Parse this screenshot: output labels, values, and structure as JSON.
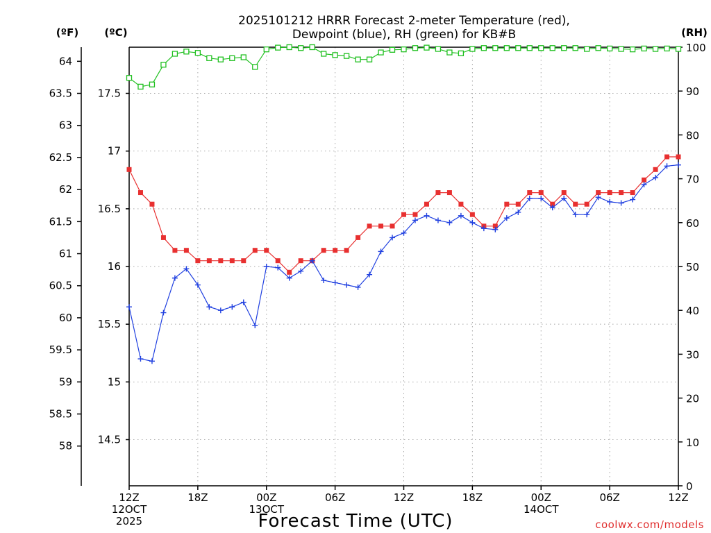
{
  "chart_data": {
    "type": "line",
    "title_line1": "2025101212 HRRR Forecast 2-meter Temperature (red),",
    "title_line2": "Dewpoint (blue), RH (green) for KB#B",
    "unit_f": "(ºF)",
    "unit_c": "(ºC)",
    "unit_rh": "(RH)",
    "xlabel": "Forecast Time (UTC)",
    "credit": "coolwx.com/models",
    "x_range_hours": [
      0,
      48
    ],
    "y_c_range": [
      14.1,
      17.9
    ],
    "y_rh_range": [
      0,
      100
    ],
    "fahrenheit_ticks": [
      "58",
      "58.5",
      "59",
      "59.5",
      "60",
      "60.5",
      "61",
      "61.5",
      "62",
      "62.5",
      "63",
      "63.5",
      "64"
    ],
    "fahrenheit_values": [
      58,
      58.5,
      59,
      59.5,
      60,
      60.5,
      61,
      61.5,
      62,
      62.5,
      63,
      63.5,
      64
    ],
    "celsius_ticks": [
      "14.5",
      "15",
      "15.5",
      "16",
      "16.5",
      "17",
      "17.5"
    ],
    "celsius_values": [
      14.5,
      15,
      15.5,
      16,
      16.5,
      17,
      17.5
    ],
    "rh_ticks": [
      "0",
      "10",
      "20",
      "30",
      "40",
      "50",
      "60",
      "70",
      "80",
      "90",
      "100"
    ],
    "rh_values": [
      0,
      10,
      20,
      30,
      40,
      50,
      60,
      70,
      80,
      90,
      100
    ],
    "x_ticks": [
      {
        "hour": 0,
        "lines": [
          "12Z",
          "12OCT",
          "2025"
        ]
      },
      {
        "hour": 6,
        "lines": [
          "18Z"
        ]
      },
      {
        "hour": 12,
        "lines": [
          "00Z",
          "13OCT"
        ]
      },
      {
        "hour": 18,
        "lines": [
          "06Z"
        ]
      },
      {
        "hour": 24,
        "lines": [
          "12Z"
        ]
      },
      {
        "hour": 30,
        "lines": [
          "18Z"
        ]
      },
      {
        "hour": 36,
        "lines": [
          "00Z",
          "14OCT"
        ]
      },
      {
        "hour": 42,
        "lines": [
          "06Z"
        ]
      },
      {
        "hour": 48,
        "lines": [
          "12Z"
        ]
      }
    ],
    "grid": true,
    "series": [
      {
        "name": "Temperature (red)",
        "axis": "celsius",
        "color": "#e83030",
        "marker": "filled-square",
        "values": [
          16.84,
          16.64,
          16.54,
          16.25,
          16.14,
          16.14,
          16.05,
          16.05,
          16.05,
          16.05,
          16.05,
          16.14,
          16.14,
          16.05,
          15.95,
          16.05,
          16.05,
          16.14,
          16.14,
          16.14,
          16.25,
          16.35,
          16.35,
          16.35,
          16.45,
          16.45,
          16.54,
          16.64,
          16.64,
          16.54,
          16.45,
          16.35,
          16.35,
          16.54,
          16.54,
          16.64,
          16.64,
          16.54,
          16.64,
          16.54,
          16.54,
          16.64,
          16.64,
          16.64,
          16.64,
          16.75,
          16.84,
          16.95,
          16.95
        ]
      },
      {
        "name": "Dewpoint (blue)",
        "axis": "celsius",
        "color": "#2040e0",
        "marker": "plus",
        "values": [
          15.65,
          15.2,
          15.18,
          15.6,
          15.9,
          15.98,
          15.84,
          15.65,
          15.62,
          15.65,
          15.69,
          15.49,
          16.0,
          15.99,
          15.9,
          15.96,
          16.05,
          15.88,
          15.86,
          15.84,
          15.82,
          15.93,
          16.13,
          16.25,
          16.29,
          16.4,
          16.44,
          16.4,
          16.38,
          16.44,
          16.38,
          16.33,
          16.32,
          16.42,
          16.47,
          16.59,
          16.59,
          16.51,
          16.59,
          16.45,
          16.45,
          16.6,
          16.56,
          16.55,
          16.58,
          16.71,
          16.77,
          16.87,
          16.88
        ]
      },
      {
        "name": "RH (green)",
        "axis": "rh",
        "color": "#20c020",
        "marker": "open-square",
        "values": [
          93,
          91,
          91.5,
          96,
          98.5,
          99,
          98.7,
          97.5,
          97.2,
          97.5,
          97.7,
          95.5,
          99.5,
          99.9,
          100,
          99.8,
          100,
          98.5,
          98.2,
          98,
          97.2,
          97.2,
          98.8,
          99.4,
          99.5,
          99.8,
          99.9,
          99.6,
          98.8,
          98.6,
          99.6,
          99.8,
          99.8,
          99.8,
          99.8,
          99.8,
          99.8,
          99.8,
          99.8,
          99.8,
          99.6,
          99.8,
          99.7,
          99.6,
          99.5,
          99.7,
          99.6,
          99.7,
          99.6
        ]
      }
    ]
  }
}
